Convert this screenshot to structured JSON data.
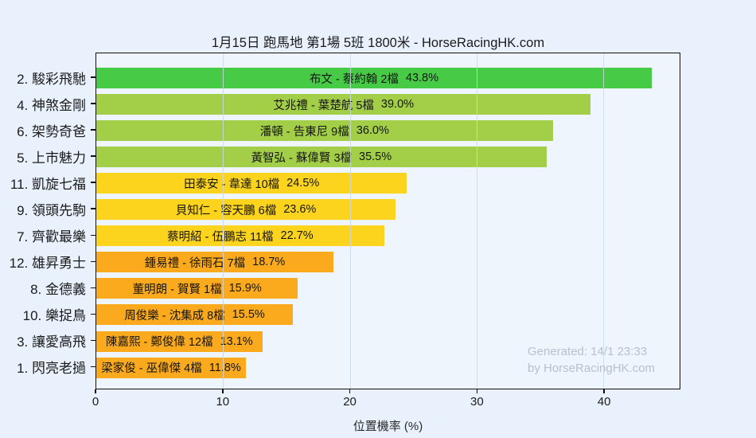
{
  "title": "1月15日  跑馬地  第1場  5班  1800米 - HorseRacingHK.com",
  "watermark": {
    "line1": "Generated: 14/1 23:33",
    "line2": "by HorseRacingHK.com"
  },
  "chart_data": {
    "type": "bar",
    "orientation": "horizontal",
    "title": "1月15日  跑馬地  第1場  5班  1800米 - HorseRacingHK.com",
    "xlabel": "位置機率 (%)",
    "ylabel": "",
    "xlim": [
      0,
      46
    ],
    "xticks": [
      0,
      10,
      20,
      30,
      40
    ],
    "grid": true,
    "legend": "none",
    "categories": [
      "2. 駿彩飛馳",
      "4. 神煞金剛",
      "6. 架勢奇爸",
      "5. 上市魅力",
      "11. 凱旋七福",
      "9. 領頭先駒",
      "7. 齊歡最樂",
      "12. 雄昇勇士",
      "8. 金德義",
      "10. 樂捉鳥",
      "3. 讓愛高飛",
      "1. 閃亮老撾"
    ],
    "values": [
      43.8,
      39.0,
      36.0,
      35.5,
      24.5,
      23.6,
      22.7,
      18.7,
      15.9,
      15.5,
      13.1,
      11.8
    ],
    "bar_labels": [
      "布文 - 蔡約翰 2檔",
      "艾兆禮 - 葉楚航 5檔",
      "潘頓 - 告東尼 9檔",
      "黃智弘 - 蘇偉賢 3檔",
      "田泰安 - 韋達 10檔",
      "貝知仁 - 容天鵬 6檔",
      "蔡明紹 - 伍鵬志 11檔",
      "鍾易禮 - 徐雨石 7檔",
      "董明朗 - 賀賢 1檔",
      "周俊樂 - 沈集成 8檔",
      "陳嘉熙 - 鄭俊偉 12檔",
      "梁家俊 - 巫偉傑 4檔"
    ],
    "pct_labels": [
      "43.8%",
      "39.0%",
      "36.0%",
      "35.5%",
      "24.5%",
      "23.6%",
      "22.7%",
      "18.7%",
      "15.9%",
      "15.5%",
      "13.1%",
      "11.8%"
    ],
    "bar_colors": [
      "#47cb47",
      "#a3ce47",
      "#a3ce47",
      "#a3ce47",
      "#fdd41d",
      "#fdd41d",
      "#fdd41d",
      "#fbaa1d",
      "#fbaa1d",
      "#fbaa1d",
      "#fbaa1d",
      "#fbaa1d"
    ]
  },
  "colors": {
    "figure_background": "#e9f2fc",
    "plot_background": "#eef5fd",
    "axis": "#101010",
    "gridline": "#cdd8e6",
    "green": "#47cb47",
    "yellow_green": "#a3ce47",
    "yellow": "#fdd41d",
    "orange": "#fbaa1d",
    "watermark": "#b7c0cb"
  }
}
